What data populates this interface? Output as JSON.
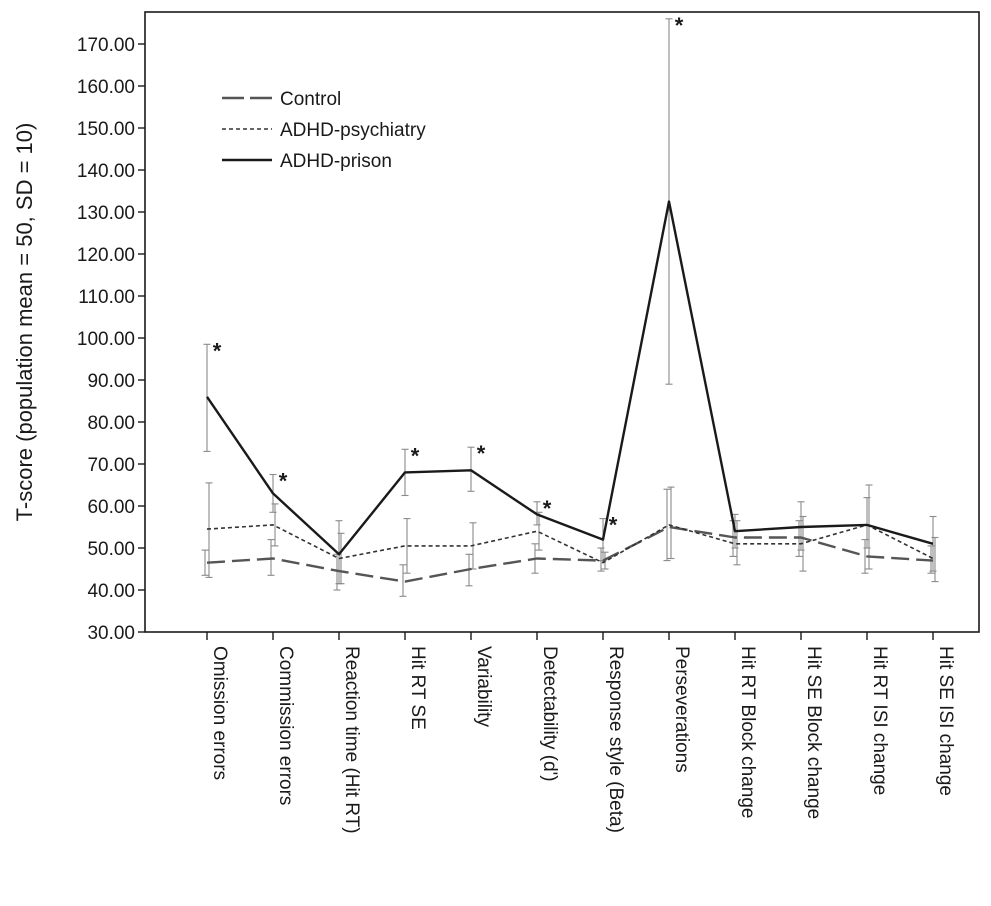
{
  "chart_data": {
    "type": "line",
    "ylabel": "T-score (population mean = 50, SD = 10)",
    "xlabel": "",
    "ylim": [
      30,
      175
    ],
    "yticks": [
      30,
      40,
      50,
      60,
      70,
      80,
      90,
      100,
      110,
      120,
      130,
      140,
      150,
      160,
      170
    ],
    "ytick_labels": [
      "30.00",
      "40.00",
      "50.00",
      "60.00",
      "70.00",
      "80.00",
      "90.00",
      "100.00",
      "110.00",
      "120.00",
      "130.00",
      "140.00",
      "150.00",
      "160.00",
      "170.00"
    ],
    "categories": [
      "Omission errors",
      "Commission errors",
      "Reaction time (Hit RT)",
      "Hit RT SE",
      "Variability",
      "Detectability (d')",
      "Response style (Beta)",
      "Perseverations",
      "Hit RT Block change",
      "Hit SE Block change",
      "Hit RT ISI change",
      "Hit SE ISI change"
    ],
    "series": [
      {
        "name": "Control",
        "style": "long-dash",
        "color": "#555555",
        "values": [
          46.5,
          47.5,
          44.5,
          42.0,
          45.0,
          47.5,
          47.0,
          55.0,
          52.5,
          52.5,
          48.0,
          47.0
        ],
        "err_low": [
          43.5,
          43.5,
          40.0,
          38.5,
          41.0,
          44.0,
          44.5,
          47.0,
          48.0,
          48.0,
          44.0,
          44.0
        ],
        "err_high": [
          49.5,
          52.0,
          48.5,
          46.0,
          48.5,
          51.0,
          50.0,
          64.0,
          56.5,
          56.5,
          52.0,
          50.5
        ]
      },
      {
        "name": "ADHD-psychiatry",
        "style": "dotted",
        "color": "#333333",
        "values": [
          54.5,
          55.5,
          47.5,
          50.5,
          50.5,
          54.0,
          46.5,
          55.5,
          51.0,
          51.0,
          55.5,
          47.5
        ],
        "err_low": [
          43.0,
          50.5,
          41.5,
          44.0,
          45.0,
          49.5,
          45.0,
          47.5,
          46.0,
          44.5,
          45.0,
          42.0
        ],
        "err_high": [
          65.5,
          60.5,
          53.5,
          57.0,
          56.0,
          58.5,
          49.0,
          64.5,
          56.5,
          57.5,
          65.0,
          52.5
        ]
      },
      {
        "name": "ADHD-prison",
        "style": "solid",
        "color": "#1a1a1a",
        "values": [
          86.0,
          63.0,
          48.5,
          68.0,
          68.5,
          58.0,
          52.0,
          132.5,
          54.0,
          55.0,
          55.5,
          51.0
        ],
        "err_low": [
          73.0,
          58.5,
          41.5,
          62.5,
          63.5,
          55.5,
          47.0,
          89.0,
          50.0,
          49.5,
          50.0,
          44.5
        ],
        "err_high": [
          98.5,
          67.5,
          56.5,
          73.5,
          74.0,
          61.0,
          57.0,
          176.0,
          58.0,
          61.0,
          62.0,
          57.5
        ]
      }
    ],
    "annotations": [
      {
        "text": "*",
        "category": "Omission errors"
      },
      {
        "text": "*",
        "category": "Commission errors"
      },
      {
        "text": "*",
        "category": "Hit RT SE"
      },
      {
        "text": "*",
        "category": "Variability"
      },
      {
        "text": "*",
        "category": "Detectability (d')"
      },
      {
        "text": "*",
        "category": "Response style (Beta)"
      },
      {
        "text": "*",
        "category": "Perseverations"
      }
    ],
    "legend_position": "top-left",
    "grid": false
  }
}
